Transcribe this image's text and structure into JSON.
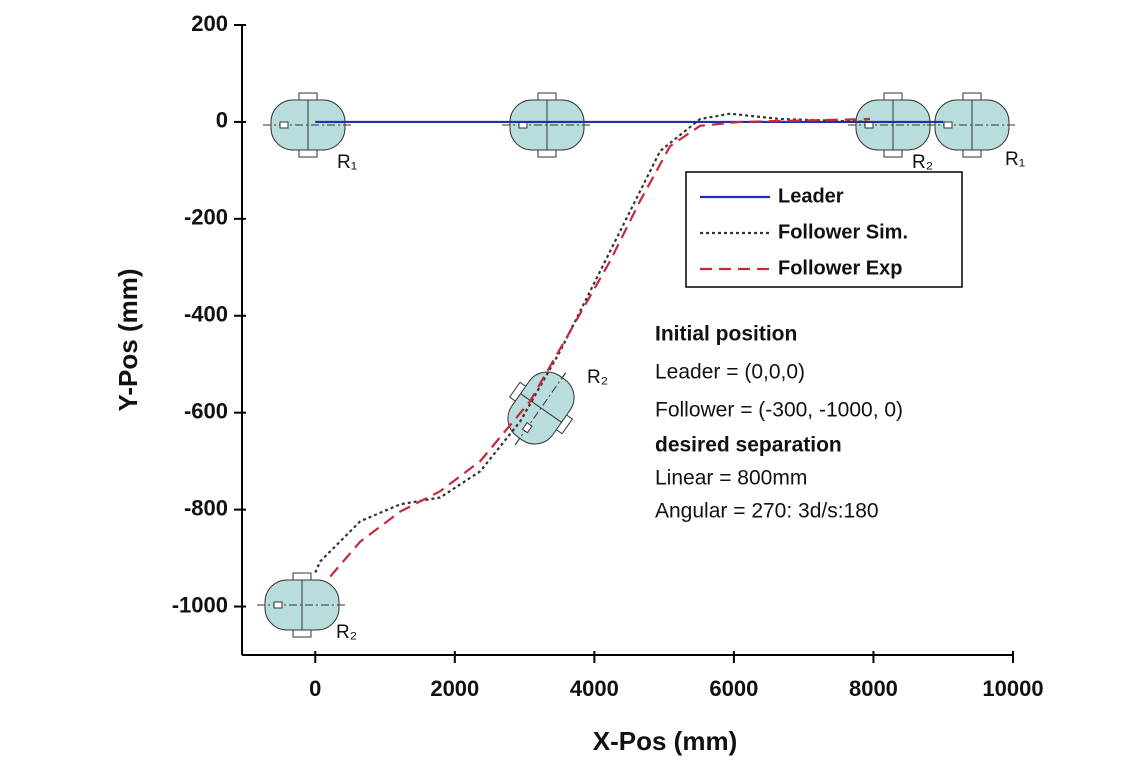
{
  "chart_data": {
    "type": "line",
    "x_label": "X-Pos (mm)",
    "y_label": "Y-Pos (mm)",
    "xlim": [
      -1050,
      10000
    ],
    "ylim": [
      -1100,
      200
    ],
    "xticks": [
      0,
      2000,
      4000,
      6000,
      8000,
      10000
    ],
    "yticks": [
      200,
      0,
      -200,
      -400,
      -600,
      -800,
      -1000
    ],
    "series": [
      {
        "name": "Leader",
        "color": "#1f2fb0",
        "linestyle": "solid",
        "x": [
          0,
          2000,
          4000,
          6000,
          8000,
          9000
        ],
        "values": [
          0,
          0,
          0,
          0,
          0,
          0
        ]
      },
      {
        "name": "Follower Sim.",
        "color": "#333333",
        "linestyle": "dotted",
        "x": [
          0,
          70,
          645,
          1218,
          1791,
          2364,
          2937,
          3510,
          4083,
          4513,
          4943,
          5516,
          5946,
          6662,
          7951
        ],
        "values": [
          -930,
          -907,
          -824,
          -789,
          -775,
          -721,
          -618,
          -473,
          -308,
          -184,
          -60,
          6,
          17,
          6,
          0
        ]
      },
      {
        "name": "Follower Exp",
        "color": "#c8283a",
        "linestyle": "dashed",
        "x": [
          215,
          645,
          1218,
          1791,
          2364,
          3080,
          3653,
          4226,
          4656,
          5086,
          5516,
          6089,
          7951
        ],
        "values": [
          -938,
          -866,
          -804,
          -762,
          -700,
          -576,
          -432,
          -287,
          -163,
          -50,
          -8,
          0,
          6
        ]
      }
    ],
    "annotations": [
      "Initial position",
      "Leader = (0,0,0)",
      "Follower = (-300, -1000, 0)",
      "desired separation",
      "Linear = 800mm",
      "Angular = 270: 3d/s:180"
    ],
    "robot_labels": [
      "R₁",
      "R₂",
      "R₁",
      "R₂",
      "R₂"
    ]
  }
}
